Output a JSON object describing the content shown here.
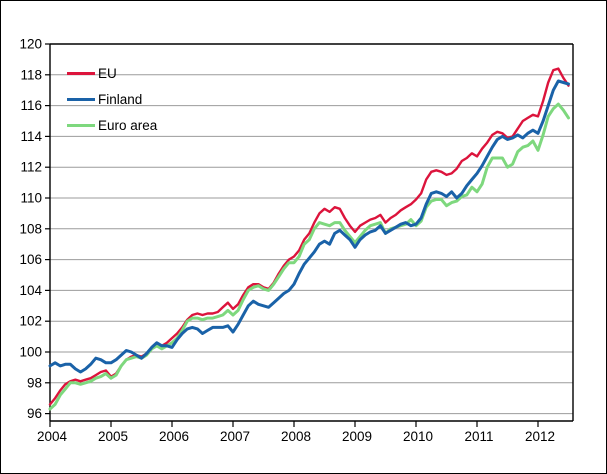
{
  "chart_data": {
    "type": "line",
    "title": "",
    "frequency": "monthly",
    "x_start": "2004-01",
    "x_end": "2012-07",
    "x_axis": {
      "tick_labels": [
        "2004",
        "2005",
        "2006",
        "2007",
        "2008",
        "2009",
        "2010",
        "2011",
        "2012"
      ]
    },
    "y_axis": {
      "tick_labels": [
        "96",
        "98",
        "100",
        "102",
        "104",
        "106",
        "108",
        "110",
        "112",
        "114",
        "116",
        "118",
        "120"
      ],
      "min": 96,
      "max": 120
    },
    "grid": "horizontal-gray",
    "legend_position": "top-left-inside",
    "series": [
      {
        "name": "EU",
        "color": "#dc143c",
        "values": [
          96.6,
          97.0,
          97.5,
          97.9,
          98.1,
          98.2,
          98.1,
          98.2,
          98.3,
          98.5,
          98.7,
          98.8,
          98.4,
          98.6,
          99.1,
          99.5,
          99.7,
          99.8,
          99.7,
          99.9,
          100.3,
          100.5,
          100.4,
          100.6,
          100.9,
          101.2,
          101.6,
          102.1,
          102.4,
          102.5,
          102.4,
          102.5,
          102.5,
          102.6,
          102.9,
          103.2,
          102.8,
          103.1,
          103.7,
          104.2,
          104.4,
          104.4,
          104.2,
          104.1,
          104.5,
          105.1,
          105.6,
          106.0,
          106.2,
          106.6,
          107.3,
          107.7,
          108.4,
          109.0,
          109.3,
          109.1,
          109.4,
          109.3,
          108.7,
          108.2,
          107.8,
          108.2,
          108.4,
          108.6,
          108.7,
          108.9,
          108.4,
          108.7,
          108.9,
          109.2,
          109.4,
          109.6,
          109.9,
          110.3,
          111.2,
          111.7,
          111.8,
          111.7,
          111.5,
          111.6,
          111.9,
          112.4,
          112.6,
          112.9,
          112.7,
          113.2,
          113.6,
          114.1,
          114.3,
          114.2,
          113.9,
          114.0,
          114.5,
          115.0,
          115.2,
          115.4,
          115.3,
          116.3,
          117.5,
          118.3,
          118.4,
          117.8,
          117.3
        ]
      },
      {
        "name": "Finland",
        "color": "#1a62a8",
        "values": [
          99.1,
          99.3,
          99.1,
          99.2,
          99.2,
          98.9,
          98.7,
          98.9,
          99.2,
          99.6,
          99.5,
          99.3,
          99.3,
          99.5,
          99.8,
          100.1,
          100.0,
          99.8,
          99.6,
          99.9,
          100.3,
          100.6,
          100.4,
          100.4,
          100.3,
          100.8,
          101.2,
          101.5,
          101.6,
          101.5,
          101.2,
          101.4,
          101.6,
          101.6,
          101.6,
          101.7,
          101.3,
          101.8,
          102.4,
          103.0,
          103.3,
          103.1,
          103.0,
          102.9,
          103.2,
          103.5,
          103.8,
          104.0,
          104.4,
          105.1,
          105.7,
          106.1,
          106.5,
          107.0,
          107.2,
          107.0,
          107.7,
          107.9,
          107.6,
          107.3,
          106.8,
          107.3,
          107.6,
          107.8,
          107.9,
          108.2,
          107.7,
          107.9,
          108.1,
          108.3,
          108.4,
          108.2,
          108.3,
          108.7,
          109.6,
          110.3,
          110.4,
          110.3,
          110.1,
          110.4,
          110.0,
          110.3,
          110.8,
          111.2,
          111.6,
          112.1,
          112.7,
          113.3,
          113.8,
          114.0,
          113.8,
          113.9,
          114.1,
          113.9,
          114.2,
          114.4,
          114.2,
          115.0,
          116.0,
          117.0,
          117.6,
          117.5,
          117.4
        ]
      },
      {
        "name": "Euro area",
        "color": "#7ed87e",
        "values": [
          96.3,
          96.6,
          97.2,
          97.6,
          98.0,
          98.0,
          97.9,
          98.0,
          98.1,
          98.3,
          98.4,
          98.6,
          98.3,
          98.5,
          99.1,
          99.5,
          99.6,
          99.7,
          99.6,
          99.8,
          100.2,
          100.4,
          100.2,
          100.4,
          100.6,
          100.9,
          101.4,
          102.0,
          102.2,
          102.2,
          102.1,
          102.2,
          102.2,
          102.3,
          102.4,
          102.7,
          102.4,
          102.7,
          103.4,
          104.0,
          104.2,
          104.3,
          104.1,
          104.0,
          104.4,
          104.9,
          105.4,
          105.8,
          105.8,
          106.2,
          107.0,
          107.3,
          108.0,
          108.4,
          108.3,
          108.2,
          108.4,
          108.4,
          107.9,
          107.5,
          107.1,
          107.5,
          107.9,
          108.2,
          108.3,
          108.4,
          107.7,
          108.0,
          108.1,
          108.2,
          108.3,
          108.6,
          108.2,
          108.5,
          109.4,
          109.8,
          109.9,
          109.9,
          109.5,
          109.7,
          109.8,
          110.1,
          110.2,
          110.7,
          110.4,
          110.9,
          112.0,
          112.6,
          112.6,
          112.6,
          112.0,
          112.2,
          113.0,
          113.3,
          113.4,
          113.7,
          113.1,
          114.1,
          115.3,
          115.8,
          116.1,
          115.7,
          115.2
        ]
      }
    ]
  }
}
